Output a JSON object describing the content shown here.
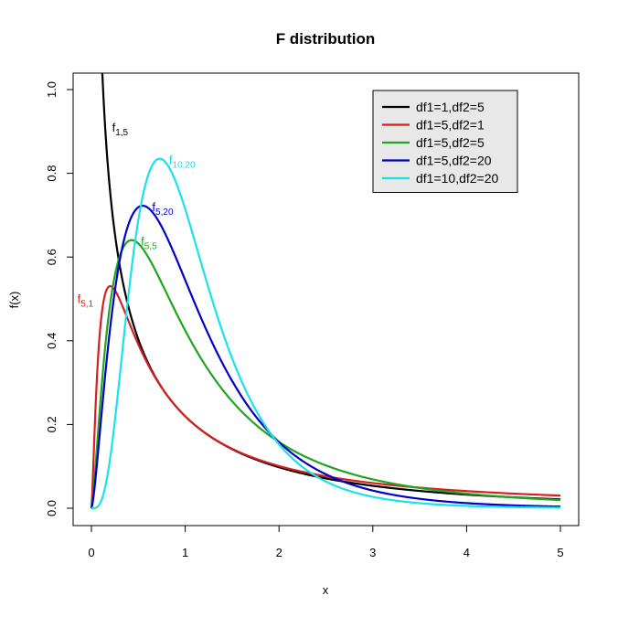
{
  "chart_data": {
    "type": "line",
    "title": "F distribution",
    "xlabel": "x",
    "ylabel": "f(x)",
    "xlim": [
      0,
      5
    ],
    "ylim": [
      0,
      1.0
    ],
    "xticks": [
      "0",
      "1",
      "2",
      "3",
      "4",
      "5"
    ],
    "yticks": [
      "0.0",
      "0.2",
      "0.4",
      "0.6",
      "0.8",
      "1.0"
    ],
    "grid": false,
    "legend_position": "top-right",
    "series": [
      {
        "name": "df1=1,df2=5",
        "color": "#000000",
        "df1": 1,
        "df2": 5,
        "label": "f",
        "label_sub": "1,5"
      },
      {
        "name": "df1=5,df2=1",
        "color": "#d62020",
        "df1": 5,
        "df2": 1,
        "label": "f",
        "label_sub": "5,1"
      },
      {
        "name": "df1=5,df2=5",
        "color": "#1fa51f",
        "df1": 5,
        "df2": 5,
        "label": "f",
        "label_sub": "5,5"
      },
      {
        "name": "df1=5,df2=20",
        "color": "#0000c8",
        "df1": 5,
        "df2": 20,
        "label": "f",
        "label_sub": "5,20"
      },
      {
        "name": "df1=10,df2=20",
        "color": "#19e2e8",
        "df1": 10,
        "df2": 20,
        "label": "f",
        "label_sub": "10,20"
      }
    ]
  }
}
